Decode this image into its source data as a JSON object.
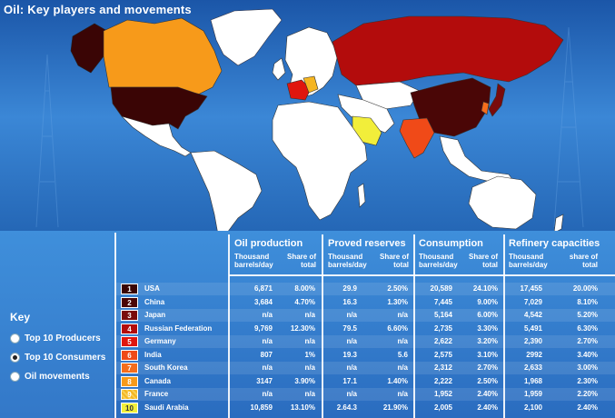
{
  "title": "Oil: Key players and movements",
  "key": {
    "heading": "Key",
    "options": [
      {
        "label": "Top 10 Producers",
        "selected": false
      },
      {
        "label": "Top 10 Consumers",
        "selected": true
      },
      {
        "label": "Oil movements",
        "selected": false
      }
    ]
  },
  "columns": {
    "production": {
      "title": "Oil production",
      "sub1": "Thousand barrels/day",
      "sub2": "Share of total"
    },
    "reserves": {
      "title": "Proved reserves",
      "sub1": "Thousand barrels/day",
      "sub2": "Share of total"
    },
    "consumption": {
      "title": "Consumption",
      "sub1": "Thousand barrels/day",
      "sub2": "Share of total"
    },
    "refinery": {
      "title": "Refinery capacities",
      "sub1": "Thousand barrels/day",
      "sub2": "share of total"
    }
  },
  "rows": [
    {
      "rank": "1",
      "country": "USA",
      "color": "#3a0505",
      "prod": "6,871",
      "prod_share": "8.00%",
      "res": "29.9",
      "res_share": "2.50%",
      "cons": "20,589",
      "cons_share": "24.10%",
      "ref": "17,455",
      "ref_share": "20.00%"
    },
    {
      "rank": "2",
      "country": "China",
      "color": "#4a0606",
      "prod": "3,684",
      "prod_share": "4.70%",
      "res": "16.3",
      "res_share": "1.30%",
      "cons": "7,445",
      "cons_share": "9.00%",
      "ref": "7,029",
      "ref_share": "8.10%"
    },
    {
      "rank": "3",
      "country": "Japan",
      "color": "#7a0b0b",
      "prod": "n/a",
      "prod_share": "n/a",
      "res": "n/a",
      "res_share": "n/a",
      "cons": "5,164",
      "cons_share": "6.00%",
      "ref": "4,542",
      "ref_share": "5.20%"
    },
    {
      "rank": "4",
      "country": "Russian Federation",
      "color": "#b30c0c",
      "prod": "9,769",
      "prod_share": "12.30%",
      "res": "79.5",
      "res_share": "6.60%",
      "cons": "2,735",
      "cons_share": "3.30%",
      "ref": "5,491",
      "ref_share": "6.30%"
    },
    {
      "rank": "5",
      "country": "Germany",
      "color": "#e0160e",
      "prod": "n/a",
      "prod_share": "n/a",
      "res": "n/a",
      "res_share": "n/a",
      "cons": "2,622",
      "cons_share": "3.20%",
      "ref": "2,390",
      "ref_share": "2.70%"
    },
    {
      "rank": "6",
      "country": "India",
      "color": "#f04a18",
      "prod": "807",
      "prod_share": "1%",
      "res": "19.3",
      "res_share": "5.6",
      "cons": "2,575",
      "cons_share": "3.10%",
      "ref": "2992",
      "ref_share": "3.40%"
    },
    {
      "rank": "7",
      "country": "South Korea",
      "color": "#f56d1c",
      "prod": "n/a",
      "prod_share": "n/a",
      "res": "n/a",
      "res_share": "n/a",
      "cons": "2,312",
      "cons_share": "2.70%",
      "ref": "2,633",
      "ref_share": "3.00%"
    },
    {
      "rank": "8",
      "country": "Canada",
      "color": "#f79a1a",
      "prod": "3147",
      "prod_share": "3.90%",
      "res": "17.1",
      "res_share": "1.40%",
      "cons": "2,222",
      "cons_share": "2.50%",
      "ref": "1,968",
      "ref_share": "2.30%"
    },
    {
      "rank": "9",
      "country": "France",
      "color": "#f5b520",
      "prod": "n/a",
      "prod_share": "n/a",
      "res": "n/a",
      "res_share": "n/a",
      "cons": "1,952",
      "cons_share": "2.40%",
      "ref": "1,959",
      "ref_share": "2.20%"
    },
    {
      "rank": "10",
      "country": "Saudi Arabia",
      "color": "#f2ee3a",
      "prod": "10,859",
      "prod_share": "13.10%",
      "res": "2.64.3",
      "res_share": "21.90%",
      "cons": "2,005",
      "cons_share": "2.40%",
      "ref": "2,100",
      "ref_share": "2.40%"
    }
  ]
}
